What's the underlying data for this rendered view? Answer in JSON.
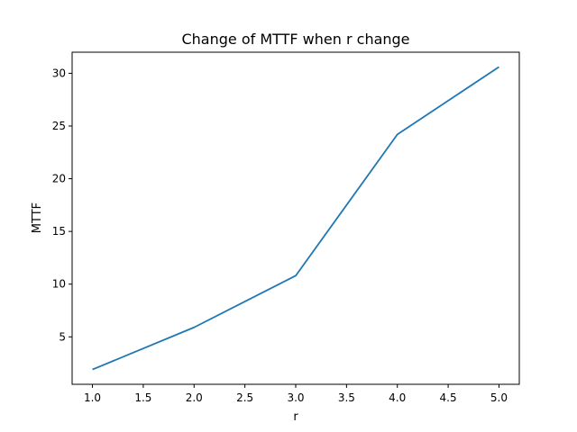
{
  "chart_data": {
    "type": "line",
    "title": "Change of MTTF when r change",
    "xlabel": "r",
    "ylabel": "MTTF",
    "xlim": [
      0.8,
      5.2
    ],
    "ylim": [
      0.5,
      32.0
    ],
    "xticks": [
      1.0,
      1.5,
      2.0,
      2.5,
      3.0,
      3.5,
      4.0,
      4.5,
      5.0
    ],
    "xtick_labels": [
      "1.0",
      "1.5",
      "2.0",
      "2.5",
      "3.0",
      "3.5",
      "4.0",
      "4.5",
      "5.0"
    ],
    "yticks": [
      5,
      10,
      15,
      20,
      25,
      30
    ],
    "ytick_labels": [
      "5",
      "10",
      "15",
      "20",
      "25",
      "30"
    ],
    "grid": false,
    "series": [
      {
        "color": "#1f77b4",
        "x": [
          1,
          2,
          3,
          4,
          5
        ],
        "y": [
          1.9,
          5.9,
          10.8,
          24.2,
          30.6
        ]
      }
    ]
  }
}
